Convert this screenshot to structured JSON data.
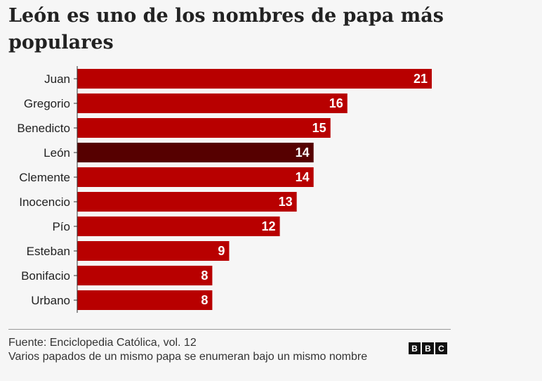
{
  "title": "León es uno de los nombres de papa más populares",
  "chart_data": {
    "type": "bar",
    "orientation": "horizontal",
    "categories": [
      "Juan",
      "Gregorio",
      "Benedicto",
      "León",
      "Clemente",
      "Inocencio",
      "Pío",
      "Esteban",
      "Bonifacio",
      "Urbano"
    ],
    "values": [
      21,
      16,
      15,
      14,
      14,
      13,
      12,
      9,
      8,
      8
    ],
    "highlight": "León",
    "xlim": [
      0,
      21
    ],
    "grid": false,
    "colors": {
      "bar": "#b80000",
      "highlight": "#560000",
      "label": "#ffffff"
    }
  },
  "footer": {
    "source": "Fuente: Enciclopedia Católica, vol. 12",
    "note": "Varios papados de un mismo papa se enumeran bajo un mismo nombre"
  },
  "logo": {
    "letters": [
      "B",
      "B",
      "C"
    ],
    "alt": "BBC"
  }
}
